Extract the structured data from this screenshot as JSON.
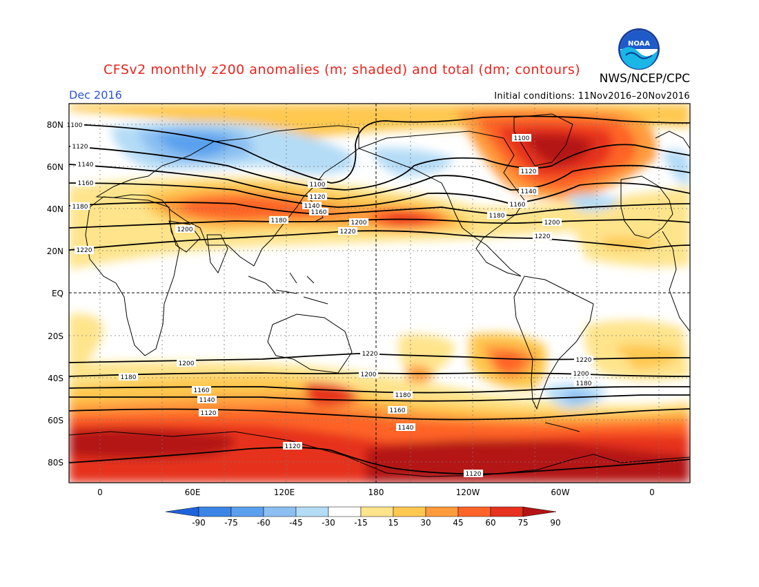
{
  "header": {
    "title": "CFSv2 monthly z200 anomalies (m; shaded) and total (dm; contours)",
    "agency": "NWS/NCEP/CPC",
    "month": "Dec 2016",
    "initial_conditions": "Initial conditions: 11Nov2016–20Nov2016",
    "logo_text": "NOAA"
  },
  "axes": {
    "lat_labels": [
      "80N",
      "60N",
      "40N",
      "20N",
      "EQ",
      "20S",
      "40S",
      "60S",
      "80S"
    ],
    "lon_labels": [
      "0",
      "60E",
      "120E",
      "180",
      "120W",
      "60W",
      "0"
    ]
  },
  "colorbar": {
    "ticks": [
      "-90",
      "-75",
      "-60",
      "-45",
      "-30",
      "-15",
      "15",
      "30",
      "45",
      "60",
      "75",
      "90"
    ],
    "colors": [
      "#1e63dc",
      "#3c85e6",
      "#5aa0ee",
      "#8cc0f2",
      "#b4dcf6",
      "#ffffff",
      "#ffe48c",
      "#ffc850",
      "#ff9b3c",
      "#ff6428",
      "#e6321e",
      "#b41414"
    ]
  },
  "contour_labels": {
    "nh": [
      "1100",
      "1120",
      "1140",
      "1160",
      "1180",
      "1200",
      "1220",
      "1100",
      "1120",
      "1140",
      "1160",
      "1180",
      "1200",
      "1220",
      "1100",
      "1120",
      "1140",
      "1160",
      "1180",
      "1200",
      "1220"
    ],
    "sh": [
      "1220",
      "1200",
      "1180",
      "1160",
      "1140",
      "1120",
      "1220",
      "1200",
      "1180",
      "1160",
      "1140",
      "1120",
      "1220",
      "1200",
      "1180",
      "1120"
    ]
  }
}
